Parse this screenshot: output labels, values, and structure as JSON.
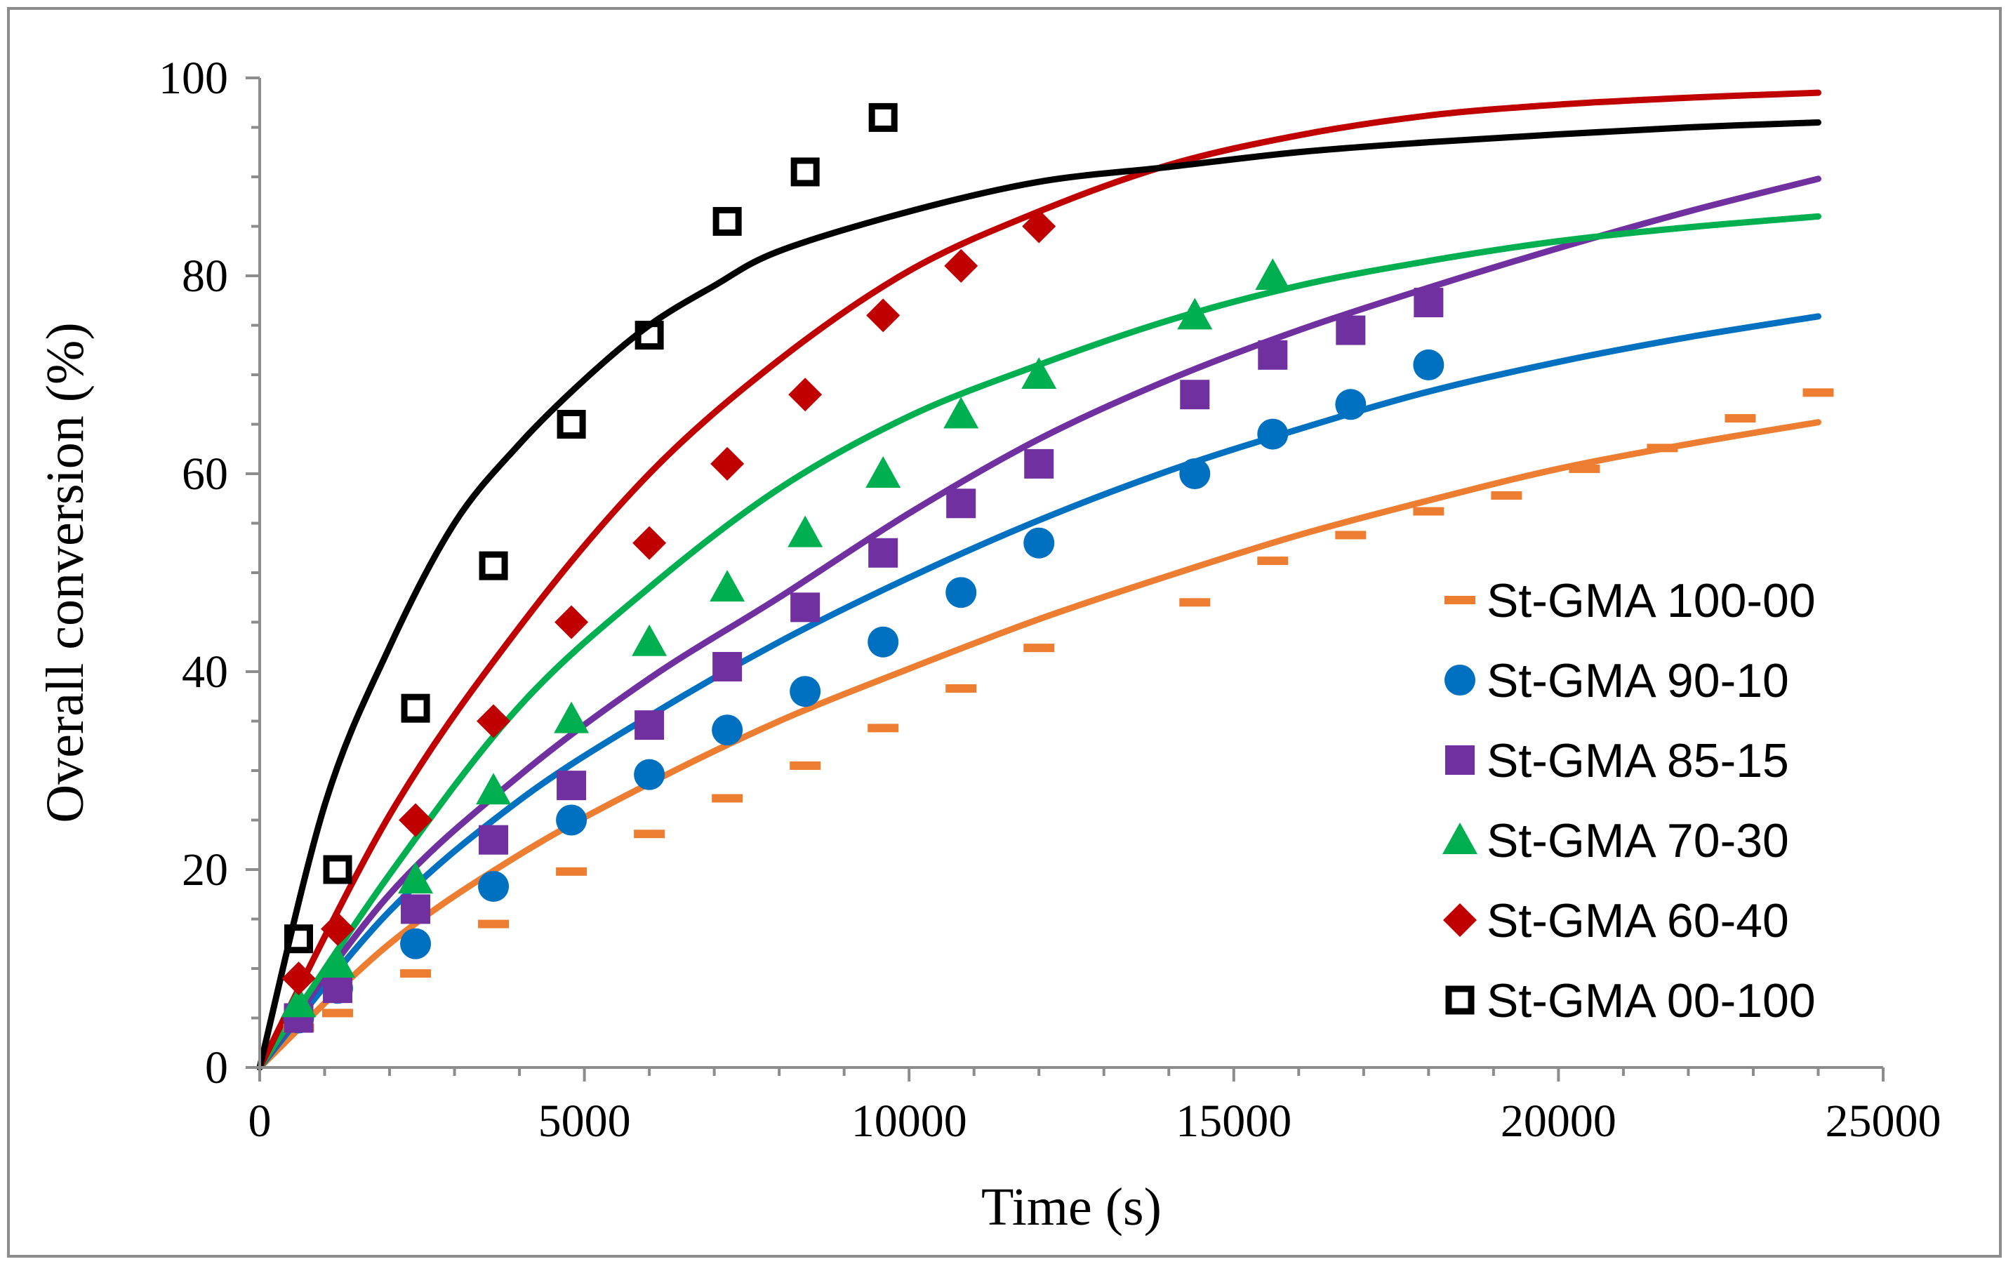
{
  "chart_data": {
    "type": "scatter",
    "title": "",
    "xlabel": "Time (s)",
    "ylabel": "Overall conversion (%)",
    "xlim": [
      0,
      25000
    ],
    "ylim": [
      0,
      100
    ],
    "xticks": [
      "0",
      "5000",
      "10000",
      "15000",
      "20000",
      "25000"
    ],
    "yticks": [
      "0",
      "20",
      "40",
      "60",
      "80",
      "100"
    ],
    "grid": false,
    "legend_position": "bottom-right",
    "series": [
      {
        "name": "St-GMA 100-00",
        "color": "#ED7D31",
        "marker": "dash",
        "x": [
          600,
          1200,
          2400,
          3600,
          4800,
          6000,
          7200,
          8400,
          9600,
          10800,
          12000,
          14400,
          15600,
          16800,
          18000,
          19200,
          20400,
          21600,
          22800,
          24000
        ],
        "y": [
          4,
          5.5,
          9.5,
          14.5,
          19.8,
          23.6,
          27.2,
          30.5,
          34.3,
          38.3,
          42.4,
          47,
          51.2,
          53.8,
          56.2,
          57.8,
          60.5,
          62.6,
          65.6,
          68.2
        ],
        "fit": {
          "x": [
            0,
            2000,
            4000,
            6000,
            8000,
            10000,
            12000,
            14000,
            16000,
            18000,
            20000,
            22000,
            24000
          ],
          "y": [
            0,
            12.5,
            21.5,
            28.7,
            35,
            40.3,
            45.3,
            49.7,
            53.8,
            57.3,
            60.5,
            63,
            65.2
          ]
        }
      },
      {
        "name": "St-GMA 90-10",
        "color": "#0070C0",
        "marker": "circle",
        "x": [
          600,
          1200,
          2400,
          3600,
          4800,
          6000,
          7200,
          8400,
          9600,
          10800,
          12000,
          14400,
          15600,
          16800,
          18000
        ],
        "y": [
          5,
          8,
          12.5,
          18.3,
          25,
          29.6,
          34.1,
          38,
          43,
          48,
          53,
          60,
          64,
          67,
          71
        ],
        "fit": {
          "x": [
            0,
            2000,
            4000,
            6000,
            8000,
            10000,
            12000,
            14000,
            16000,
            18000,
            20000,
            22000,
            24000
          ],
          "y": [
            0,
            15.8,
            27,
            35.5,
            43,
            49.5,
            55.3,
            60.3,
            64.5,
            68.3,
            71.3,
            73.8,
            75.9
          ]
        }
      },
      {
        "name": "St-GMA 85-15",
        "color": "#7030A0",
        "marker": "square",
        "x": [
          600,
          1200,
          2400,
          3600,
          4800,
          6000,
          7200,
          8400,
          9600,
          10800,
          12000,
          14400,
          15600,
          16800,
          18000
        ],
        "y": [
          5,
          8,
          16,
          23,
          28.5,
          34.6,
          40.5,
          46.5,
          52,
          57,
          61,
          68,
          72,
          74.5,
          77.3
        ],
        "fit": {
          "x": [
            0,
            2000,
            4000,
            6000,
            8000,
            10000,
            12000,
            14000,
            16000,
            18000,
            20000,
            22000,
            24000
          ],
          "y": [
            0,
            17.5,
            29.5,
            39.3,
            47.5,
            56,
            63.5,
            69.5,
            74.5,
            78.8,
            82.8,
            86.5,
            89.8
          ]
        }
      },
      {
        "name": "St-GMA 70-30",
        "color": "#00B050",
        "marker": "triangle",
        "x": [
          600,
          1200,
          2400,
          3600,
          4800,
          6000,
          7200,
          8400,
          9600,
          10800,
          12000,
          14400,
          15600
        ],
        "y": [
          6.5,
          10.5,
          19,
          28,
          35.2,
          43,
          48.5,
          54,
          60,
          66,
          70,
          76,
          80
        ],
        "fit": {
          "x": [
            0,
            2000,
            4000,
            6000,
            8000,
            10000,
            12000,
            14000,
            16000,
            18000,
            20000,
            22000,
            24000
          ],
          "y": [
            0,
            19.5,
            36.5,
            48.5,
            58.5,
            65.8,
            71,
            75.5,
            79,
            81.5,
            83.5,
            84.9,
            86
          ]
        }
      },
      {
        "name": "St-GMA 60-40",
        "color": "#C00000",
        "marker": "diamond",
        "x": [
          600,
          1200,
          2400,
          3600,
          4800,
          6000,
          7200,
          8400,
          9600,
          10800,
          12000
        ],
        "y": [
          9,
          14,
          25,
          35,
          45,
          53,
          61,
          68,
          76,
          81,
          85
        ],
        "fit": {
          "x": [
            0,
            2000,
            4000,
            6000,
            8000,
            10000,
            12000,
            14000,
            16000,
            18000,
            20000,
            22000,
            24000
          ],
          "y": [
            0,
            25.5,
            44.5,
            60,
            71.5,
            80.5,
            86.5,
            91.2,
            94.2,
            96.2,
            97.3,
            98,
            98.5
          ]
        }
      },
      {
        "name": "St-GMA 00-100",
        "color": "#000000",
        "marker": "open-square",
        "x": [
          600,
          1200,
          2400,
          3600,
          4800,
          6000,
          7200,
          8400,
          9600
        ],
        "y": [
          13,
          20,
          36.3,
          50.7,
          65,
          74,
          85.5,
          90.5,
          96
        ],
        "fit": {
          "x": [
            0,
            1000,
            2000,
            3000,
            4000,
            5000,
            6000,
            7000,
            8000,
            10000,
            12000,
            14000,
            16000,
            18000,
            20000,
            22000,
            24000
          ],
          "y": [
            0,
            26.5,
            42.5,
            55,
            63,
            69.5,
            75,
            79,
            82.5,
            86.5,
            89.5,
            91,
            92.5,
            93.5,
            94.3,
            95,
            95.5
          ]
        }
      }
    ]
  }
}
